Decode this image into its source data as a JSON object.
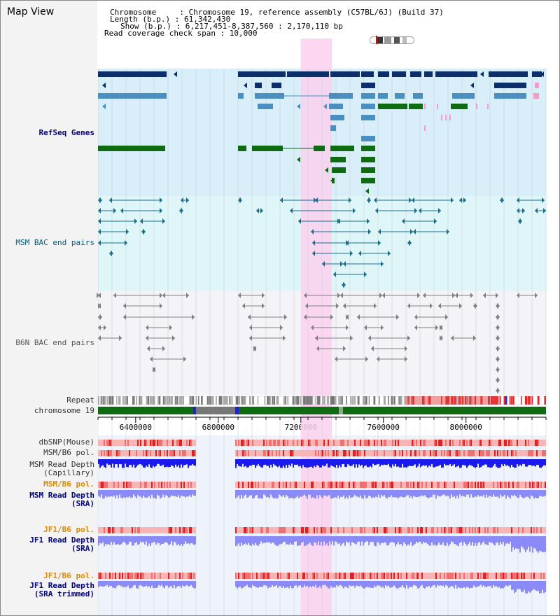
{
  "title": "Map View",
  "info": {
    "chromosome_key": "Chromosome     : ",
    "chromosome_value": "Chromosome 19, reference assembly (C57BL/6J) (Build 37)",
    "length_key": "Length (b.p.) : ",
    "length_value": "61,342,430",
    "show_key": "Show (b.p.) : ",
    "show_value": "6,217,451-8,387,560 : 2,170,110 bp",
    "coverage_key": "Read coverage check span : ",
    "coverage_value": "10,000"
  },
  "tracks": {
    "refseq": "RefSeq Genes",
    "msm_bac": "MSM BAC end pairs",
    "b6n_bac": "B6N BAC end pairs",
    "repeat": "Repeat",
    "chromosome": "chromosome 19",
    "dbsnp": "dbSNP(Mouse)",
    "msm_b6_pol_1": "MSM/B6 pol.",
    "msm_read_depth_cap": "MSM Read Depth\n(Capillary)",
    "msm_b6_pol_2": "MSM/B6 pol.",
    "msm_read_depth_sra": "MSM Read Depth\n(SRA)",
    "jf1_b6_pol_1": "JF1/B6 pol.",
    "jf1_read_depth_sra": "JF1 Read Depth\n(SRA)",
    "jf1_b6_pol_2": "JF1/B6 pol.",
    "jf1_read_depth_trim": "JF1 Read Depth\n(SRA trimmed)"
  },
  "axis": {
    "ticks": [
      "6400000",
      "6800000",
      "7200000",
      "7600000",
      "8000000"
    ],
    "tick_positions_bp": [
      6400000,
      6800000,
      7200000,
      7600000,
      8000000
    ]
  },
  "view_range_bp": [
    6217451,
    8387560
  ],
  "highlight_range_bp": [
    7200000,
    7350000
  ],
  "colors": {
    "refseq_dark": "#0b2f6b",
    "refseq_mid": "#4a8fc0",
    "refseq_green": "#0f6b12",
    "refseq_pink": "#f79bc4",
    "bac_teal": "#1a6f90",
    "bac_gray": "#808080",
    "highlight": "#fbd0ef",
    "depth_blue": "#1a1aee",
    "depth_light": "#8a8af8",
    "pol_red": "#ee3333"
  }
}
